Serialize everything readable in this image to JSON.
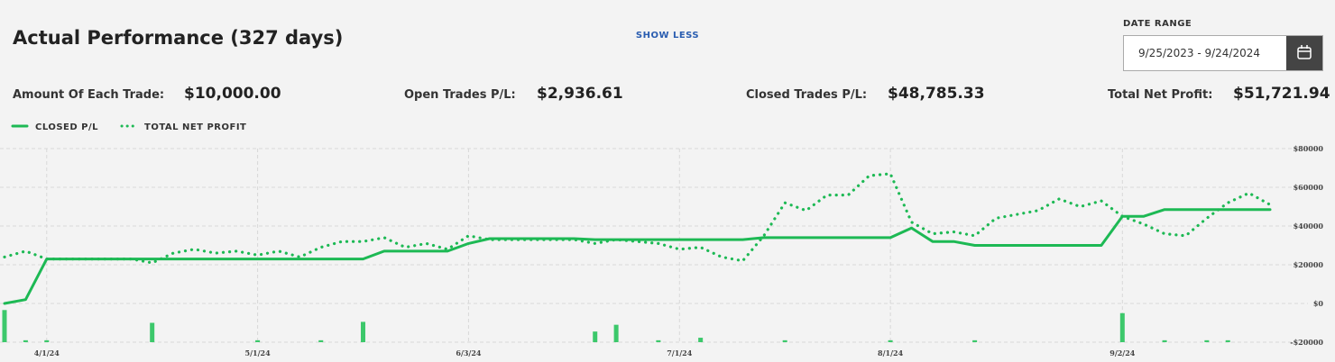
{
  "header": {
    "title": "Actual Performance (327 days)",
    "toggle": "SHOW LESS",
    "date_range_label": "DATE RANGE",
    "date_range": "9/25/2023 - 9/24/2024"
  },
  "stats": [
    {
      "label": "Amount Of Each Trade:",
      "value": "$10,000.00"
    },
    {
      "label": "Open Trades P/L:",
      "value": "$2,936.61"
    },
    {
      "label": "Closed Trades P/L:",
      "value": "$48,785.33"
    },
    {
      "label": "Total Net Profit:",
      "value": "$51,721.94"
    }
  ],
  "chart_data": {
    "type": "line",
    "categories": [
      null,
      null,
      "4/1/24",
      null,
      null,
      null,
      null,
      null,
      null,
      null,
      null,
      null,
      "5/1/24",
      null,
      null,
      null,
      null,
      null,
      null,
      null,
      null,
      null,
      "6/3/24",
      null,
      null,
      null,
      null,
      null,
      null,
      null,
      null,
      null,
      "7/1/24",
      null,
      null,
      null,
      null,
      null,
      null,
      null,
      null,
      null,
      "8/1/24",
      null,
      null,
      null,
      null,
      null,
      null,
      null,
      null,
      null,
      null,
      "9/2/24",
      null,
      null,
      null,
      null,
      null,
      null,
      null
    ],
    "series": [
      {
        "name": "CLOSED P/L",
        "color": "#1db954",
        "style": "solid",
        "values": [
          0,
          2000,
          23000,
          23000,
          23000,
          23000,
          23000,
          23000,
          23000,
          23000,
          23000,
          23000,
          23000,
          23000,
          23000,
          23000,
          23000,
          23000,
          27000,
          27000,
          27000,
          27000,
          31000,
          33500,
          33500,
          33500,
          33500,
          33500,
          33000,
          33000,
          33000,
          33000,
          33000,
          33000,
          33000,
          33000,
          34000,
          34000,
          34000,
          34000,
          34000,
          34000,
          34000,
          39000,
          32000,
          32000,
          30000,
          30000,
          30000,
          30000,
          30000,
          30000,
          30000,
          45000,
          45000,
          48500,
          48500,
          48500,
          48500,
          48500,
          48500
        ]
      },
      {
        "name": "TOTAL NET PROFIT",
        "color": "#1db954",
        "style": "dotted",
        "values": [
          24000,
          27000,
          23000,
          23000,
          23000,
          23000,
          23000,
          21000,
          26000,
          28000,
          26000,
          27000,
          25000,
          27000,
          24000,
          29000,
          32000,
          32000,
          34000,
          29000,
          31000,
          28000,
          35000,
          33000,
          33000,
          33000,
          33000,
          33000,
          31000,
          33000,
          32000,
          31000,
          28000,
          29000,
          24000,
          22000,
          35000,
          52000,
          48000,
          56000,
          56000,
          66000,
          67000,
          42000,
          36000,
          37000,
          35000,
          44000,
          46000,
          48000,
          54000,
          50000,
          53000,
          45000,
          41000,
          36000,
          35000,
          44000,
          52000,
          57000,
          51000
        ]
      }
    ],
    "bars": {
      "color": "#3cc86b",
      "values": [
        -3400,
        -19000,
        -19000,
        null,
        null,
        null,
        null,
        -10000,
        null,
        null,
        null,
        null,
        -19000,
        null,
        null,
        -19000,
        null,
        -9500,
        null,
        null,
        null,
        null,
        null,
        null,
        null,
        null,
        null,
        null,
        -14500,
        -11000,
        null,
        -19000,
        null,
        -17700,
        null,
        null,
        null,
        -19000,
        null,
        null,
        null,
        null,
        -19000,
        null,
        null,
        null,
        -19000,
        null,
        null,
        null,
        null,
        null,
        null,
        -5000,
        null,
        -19000,
        null,
        -19000,
        -19000,
        null,
        null
      ]
    },
    "ylim": [
      -20000,
      80000
    ],
    "yticks": [
      {
        "value": -20000,
        "label": "-$20000"
      },
      {
        "value": 0,
        "label": "$0"
      },
      {
        "value": 20000,
        "label": "$20000"
      },
      {
        "value": 40000,
        "label": "$40000"
      },
      {
        "value": 60000,
        "label": "$60000"
      },
      {
        "value": 80000,
        "label": "$80000"
      }
    ],
    "grid": true
  }
}
